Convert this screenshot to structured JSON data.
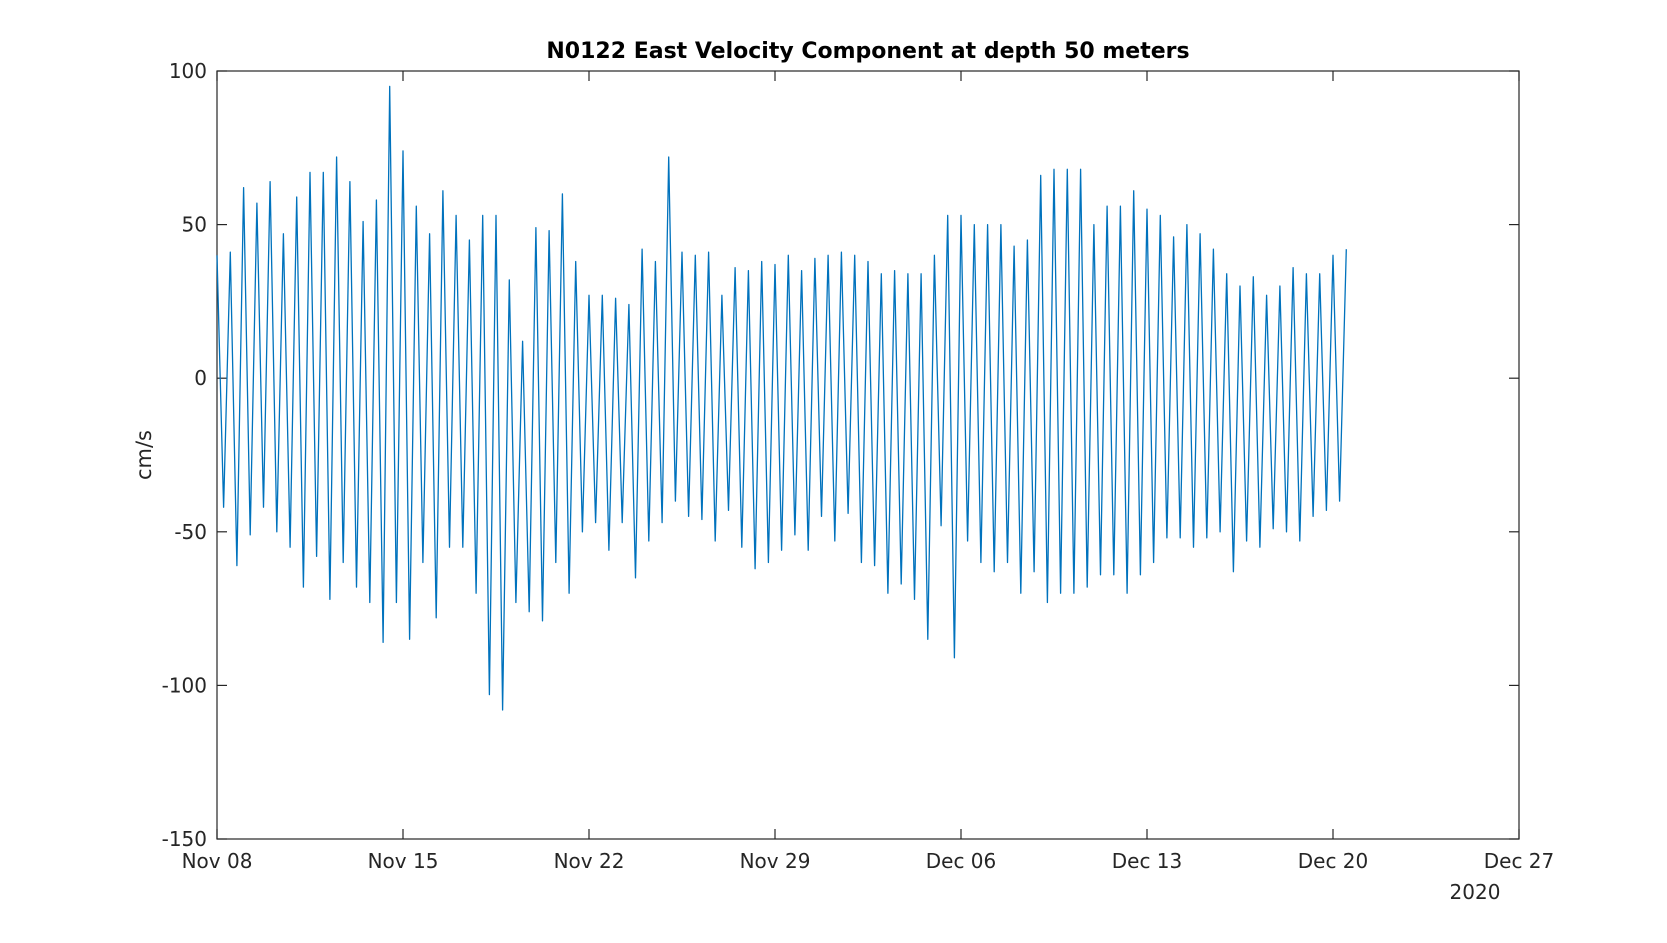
{
  "chart_data": {
    "type": "line",
    "title": "N0122 East Velocity Component at depth 50 meters",
    "xlabel": "",
    "ylabel": "cm/s",
    "x_tick_labels": [
      "Nov 08",
      "Nov 15",
      "Nov 22",
      "Nov 29",
      "Dec 06",
      "Dec 13",
      "Dec 20",
      "Dec 27"
    ],
    "x_secondary_label": "2020",
    "y_tick_labels": [
      "-150",
      "-100",
      "-50",
      "0",
      "50",
      "100"
    ],
    "y_ticks": [
      -150,
      -100,
      -50,
      0,
      50,
      100
    ],
    "x_range": [
      "2020-11-08",
      "2020-12-27"
    ],
    "ylim": [
      -150,
      100
    ],
    "grid": false,
    "line_color": "#0072BD",
    "series": [
      {
        "x_start": "2020-11-08",
        "x_step_days": 0.25,
        "values": [
          40,
          -42,
          41,
          -61,
          62,
          -51,
          57,
          -42,
          64,
          -50,
          47,
          -55,
          59,
          -68,
          67,
          -58,
          67,
          -72,
          72,
          -60,
          64,
          -68,
          51,
          -73,
          58,
          -86,
          95,
          -73,
          74,
          -85,
          56,
          -60,
          47,
          -78,
          61,
          -55,
          53,
          -55,
          45,
          -70,
          53,
          -103,
          53,
          -108,
          32,
          -73,
          12,
          -76,
          49,
          -79,
          48,
          -60,
          60,
          -70,
          38,
          -50,
          27,
          -47,
          27,
          -56,
          26,
          -47,
          24,
          -65,
          42,
          -53,
          38,
          -47,
          72,
          -40,
          41,
          -45,
          40,
          -46,
          41,
          -53,
          27,
          -43,
          36,
          -55,
          35,
          -62,
          38,
          -60,
          37,
          -56,
          40,
          -51,
          35,
          -56,
          39,
          -45,
          40,
          -53,
          41,
          -44,
          40,
          -60,
          38,
          -61,
          34,
          -70,
          35,
          -67,
          34,
          -72,
          34,
          -85,
          40,
          -48,
          53,
          -91,
          53,
          -53,
          50,
          -60,
          50,
          -63,
          50,
          -60,
          43,
          -70,
          45,
          -63,
          66,
          -73,
          68,
          -70,
          68,
          -70,
          68,
          -68,
          50,
          -64,
          56,
          -64,
          56,
          -70,
          61,
          -64,
          55,
          -60,
          53,
          -52,
          46,
          -52,
          50,
          -55,
          47,
          -52,
          42,
          -50,
          34,
          -63,
          30,
          -53,
          33,
          -55,
          27,
          -49,
          30,
          -50,
          36,
          -53,
          34,
          -45,
          34,
          -43,
          40,
          -40,
          42
        ]
      }
    ]
  }
}
